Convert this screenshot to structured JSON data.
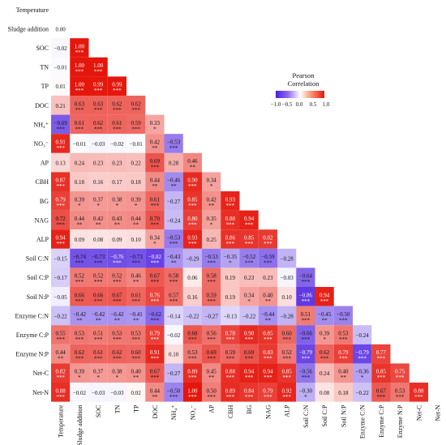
{
  "chart_data": {
    "type": "heatmap",
    "variables": [
      "Temperature",
      "Sludge addition",
      "SOC",
      "TN",
      "TP",
      "DOC",
      "NH4+",
      "NO3-",
      "AP",
      "CBH",
      "BG",
      "NAG",
      "ALP",
      "Soil C:N",
      "Soil C:P",
      "Soil N:P",
      "Enzyme C:N",
      "Enzyme C:P",
      "Enzyme N:P",
      "Net-C",
      "Net-N"
    ],
    "x_labels": [
      "Temperature",
      "Sludge addition",
      "SOC",
      "TN",
      "TP",
      "DOC",
      "NH₄⁺",
      "NO₃⁻",
      "AP",
      "CBH",
      "BG",
      "NAG",
      "ALP",
      "Soil C:N",
      "Soil C:P",
      "Soil N:P",
      "Enzyme C:N",
      "Enzyme C:P",
      "Enzyme N:P",
      "Net-C",
      "Net-N"
    ],
    "y_labels": [
      "Temperature",
      "Sludge addition",
      "SOC",
      "TN",
      "TP",
      "DOC",
      "NH₄⁺",
      "NO₃⁻",
      "AP",
      "CBH",
      "BG",
      "NAG",
      "ALP",
      "Soil C:N",
      "Soil C:P",
      "Soil N:P",
      "Enzyme C:N",
      "Enzyme C:P",
      "Enzyme N:P",
      "Net-C",
      "Net-N"
    ],
    "values": [
      [],
      [
        0.0
      ],
      [
        -0.02,
        1.0
      ],
      [
        -0.01,
        1.0,
        1.0
      ],
      [
        0.01,
        1.0,
        0.99,
        0.99
      ],
      [
        0.21,
        0.63,
        0.63,
        0.62,
        0.62
      ],
      [
        -0.69,
        0.61,
        0.62,
        0.61,
        0.59,
        0.33
      ],
      [
        0.91,
        -0.01,
        -0.03,
        -0.02,
        -0.01,
        0.42,
        -0.53
      ],
      [
        0.13,
        0.24,
        0.23,
        0.23,
        0.22,
        0.69,
        0.28,
        0.46
      ],
      [
        0.87,
        0.18,
        0.16,
        0.17,
        0.18,
        0.44,
        -0.46,
        0.9,
        0.34
      ],
      [
        0.79,
        0.39,
        0.37,
        0.38,
        0.39,
        0.61,
        -0.27,
        0.85,
        0.42,
        0.93
      ],
      [
        0.72,
        0.44,
        0.42,
        0.43,
        0.44,
        0.7,
        -0.24,
        0.8,
        0.35,
        0.88,
        0.94
      ],
      [
        0.94,
        0.09,
        0.08,
        0.09,
        0.1,
        0.34,
        -0.53,
        0.93,
        0.25,
        0.86,
        0.85,
        0.82
      ],
      [
        -0.15,
        -0.74,
        -0.73,
        -0.76,
        -0.73,
        -0.82,
        -0.43,
        -0.29,
        -0.53,
        -0.35,
        -0.52,
        -0.59,
        -0.28
      ],
      [
        -0.17,
        0.52,
        0.52,
        0.52,
        0.46,
        0.67,
        0.58,
        0.06,
        0.58,
        0.19,
        0.23,
        0.23,
        -0.03,
        -0.64
      ],
      [
        -0.05,
        0.66,
        0.66,
        0.67,
        0.61,
        0.76,
        0.57,
        0.16,
        0.59,
        0.19,
        0.34,
        0.4,
        0.1,
        -0.86,
        0.94
      ],
      [
        -0.22,
        -0.42,
        -0.42,
        -0.42,
        -0.41,
        -0.62,
        -0.14,
        -0.22,
        -0.27,
        -0.13,
        -0.22,
        -0.44,
        -0.28,
        0.51,
        -0.45,
        -0.5
      ],
      [
        0.55,
        0.53,
        0.51,
        0.53,
        0.53,
        0.79,
        -0.02,
        0.68,
        0.56,
        0.78,
        0.9,
        0.85,
        0.6,
        -0.66,
        0.39,
        0.53,
        -0.24
      ],
      [
        0.44,
        0.62,
        0.61,
        0.62,
        0.6,
        0.91,
        0.1,
        0.53,
        0.69,
        0.59,
        0.69,
        0.83,
        0.52,
        -0.79,
        0.62,
        0.79,
        -0.79,
        0.77
      ],
      [
        0.82,
        0.39,
        0.37,
        0.38,
        0.4,
        0.67,
        -0.27,
        0.89,
        0.45,
        0.88,
        0.94,
        0.94,
        0.85,
        -0.56,
        0.24,
        0.4,
        -0.36,
        0.85,
        0.75
      ],
      [
        0.88,
        -0.02,
        -0.03,
        -0.03,
        0.02,
        0.44,
        -0.5,
        1.0,
        0.5,
        0.89,
        0.84,
        0.79,
        0.92,
        -0.3,
        0.08,
        0.18,
        -0.22,
        0.67,
        0.53,
        0.88
      ]
    ],
    "significance": [
      [],
      [
        ""
      ],
      [
        "",
        "***"
      ],
      [
        "",
        "***",
        "***"
      ],
      [
        "",
        "***",
        "***",
        "***"
      ],
      [
        "",
        "***",
        "***",
        "***",
        "***"
      ],
      [
        "***",
        "***",
        "***",
        "***",
        "***",
        "*"
      ],
      [
        "***",
        "",
        "",
        "",
        "",
        "**",
        "***"
      ],
      [
        "",
        "",
        "",
        "",
        "",
        "***",
        "",
        "**"
      ],
      [
        "***",
        "",
        "",
        "",
        "",
        "**",
        "**",
        "***",
        "*"
      ],
      [
        "***",
        "*",
        "*",
        "*",
        "*",
        "***",
        "",
        "***",
        "**",
        "***"
      ],
      [
        "***",
        "**",
        "**",
        "**",
        "**",
        "***",
        "",
        "***",
        "*",
        "***",
        "***"
      ],
      [
        "***",
        "",
        "",
        "",
        "",
        "*",
        "***",
        "***",
        "",
        "***",
        "***",
        "***"
      ],
      [
        "",
        "***",
        "***",
        "***",
        "***",
        "***",
        "**",
        "",
        "***",
        "*",
        "***",
        "***",
        ""
      ],
      [
        "",
        "***",
        "***",
        "***",
        "**",
        "***",
        "***",
        "",
        "***",
        "",
        "",
        "",
        "",
        "***"
      ],
      [
        "",
        "***",
        "***",
        "***",
        "***",
        "***",
        "***",
        "",
        "***",
        "",
        "*",
        "**",
        "",
        "***",
        "***"
      ],
      [
        "",
        "**",
        "**",
        "**",
        "**",
        "***",
        "",
        "",
        "",
        "",
        "",
        "**",
        "",
        "***",
        "**",
        "***"
      ],
      [
        "***",
        "***",
        "***",
        "***",
        "***",
        "***",
        "",
        "***",
        "***",
        "***",
        "***",
        "***",
        "***",
        "***",
        "*",
        "***",
        ""
      ],
      [
        "**",
        "***",
        "***",
        "***",
        "***",
        "***",
        "",
        "***",
        "***",
        "***",
        "***",
        "***",
        "***",
        "***",
        "***",
        "***",
        "***",
        "***"
      ],
      [
        "***",
        "*",
        "*",
        "*",
        "**",
        "***",
        "",
        "***",
        "**",
        "***",
        "***",
        "***",
        "***",
        "***",
        "",
        "**",
        "*",
        "***",
        "***"
      ],
      [
        "***",
        "",
        "",
        "",
        "",
        "**",
        "***",
        "***",
        "***",
        "***",
        "***",
        "***",
        "***",
        "*",
        "",
        "",
        "",
        "***",
        "***",
        "***"
      ]
    ],
    "legend": {
      "title_line1": "Pearson",
      "title_line2": "Correlation",
      "tick_labels": [
        "−1.0",
        "−0.5",
        "0.0",
        "0.5",
        "1.0"
      ],
      "range": [
        -1.0,
        1.0
      ]
    },
    "colors": {
      "negative": "#4b1ee0",
      "zero": "#ffffff",
      "positive": "#e5160c"
    }
  }
}
